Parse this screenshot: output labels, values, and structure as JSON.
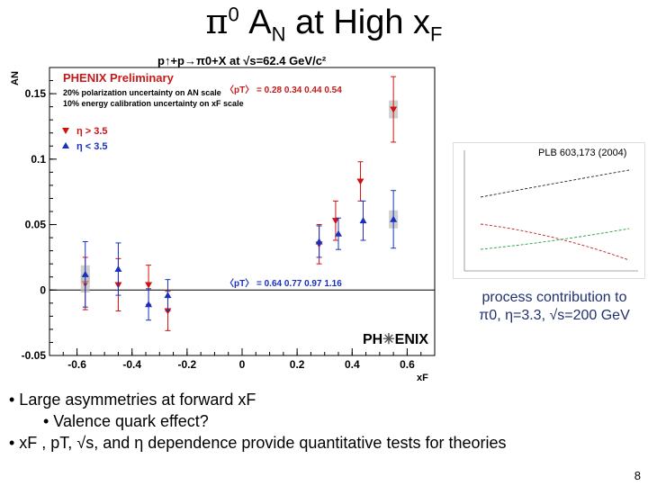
{
  "slide": {
    "title_main": "π",
    "title_sup": "0",
    "title_mid": " A",
    "title_sub1": "N",
    "title_after": " at High x",
    "title_sub2": "F",
    "page_number": "8"
  },
  "plot_title": "p↑+p→π0+X at √s=62.4 GeV/c²",
  "caption": {
    "line1": "process contribution to",
    "line2": "π0, η=3.3, √s=200 GeV"
  },
  "inset": {
    "ref": "PLB 603,173 (2004)"
  },
  "logo": {
    "left": "PH",
    "right": "ENIX"
  },
  "bullets": {
    "b1": "• Large asymmetries at forward xF",
    "b2": "• Valence quark effect?",
    "b3": "• xF , pT, √s, and η dependence provide quantitative tests for theories"
  },
  "chart_data": {
    "type": "scatter",
    "xlabel": "xF",
    "ylabel": "AN",
    "xlim": [
      -0.7,
      0.7
    ],
    "ylim": [
      -0.05,
      0.17
    ],
    "x_ticks": [
      -0.6,
      -0.4,
      -0.2,
      0,
      0.2,
      0.4,
      0.6
    ],
    "x_tick_labels": [
      "-0.6",
      "-0.4",
      "-0.2",
      "0",
      "0.2",
      "0.4",
      "0.6"
    ],
    "y_ticks": [
      -0.05,
      0,
      0.05,
      0.1,
      0.15
    ],
    "y_tick_labels": [
      "-0.05",
      "0",
      "0.05",
      "0.1",
      "0.15"
    ],
    "annotations": {
      "preliminary": "PHENIX Preliminary",
      "pol_unc": "20% polarization uncertainty on AN scale",
      "energy_unc": "10% energy calibration uncertainty on xF scale",
      "pt_top": "〈pT〉 = 0.28  0.34    0.44   0.54",
      "pt_bottom": "〈pT〉 = 0.64  0.77    0.97    1.16"
    },
    "series": [
      {
        "name": "η > 3.5",
        "color": "#d21010",
        "marker": "triangle-down",
        "x": [
          -0.57,
          -0.45,
          -0.34,
          -0.27,
          0.28,
          0.34,
          0.43,
          0.55
        ],
        "y": [
          0.005,
          0.004,
          0.004,
          -0.016,
          0.035,
          0.053,
          0.083,
          0.138
        ],
        "err": [
          0.02,
          0.02,
          0.015,
          0.015,
          0.015,
          0.015,
          0.015,
          0.025
        ]
      },
      {
        "name": "η < 3.5",
        "color": "#1830c0",
        "marker": "triangle-up",
        "x": [
          -0.57,
          -0.45,
          -0.34,
          -0.27,
          0.28,
          0.35,
          0.44,
          0.55
        ],
        "y": [
          0.012,
          0.016,
          -0.011,
          -0.004,
          0.037,
          0.043,
          0.053,
          0.054
        ],
        "err": [
          0.025,
          0.02,
          0.012,
          0.012,
          0.012,
          0.012,
          0.015,
          0.022
        ]
      }
    ]
  }
}
